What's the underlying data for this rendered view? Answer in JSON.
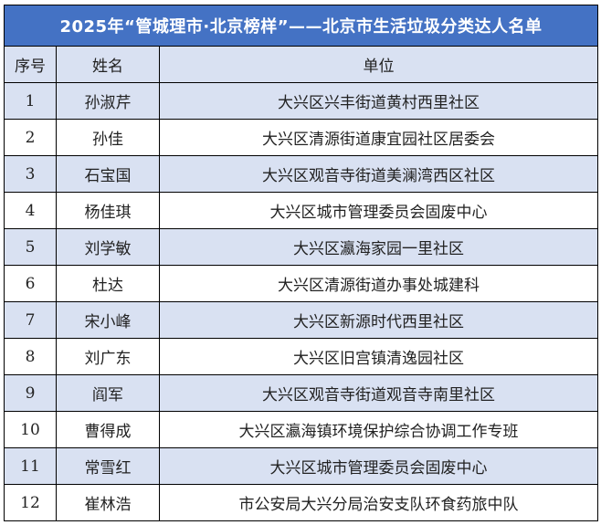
{
  "title": "2025年“管城理市·北京榜样”——北京市生活垃圾分类达人名单",
  "headers": {
    "index": "序号",
    "name": "姓名",
    "unit": "单位"
  },
  "colors": {
    "title_bg": "#4472C4",
    "stripe": "#D9E1F2"
  },
  "rows": [
    {
      "index": "1",
      "name": "孙淑芹",
      "unit": "大兴区兴丰街道黄村西里社区"
    },
    {
      "index": "2",
      "name": "孙佳",
      "unit": "大兴区清源街道康宜园社区居委会"
    },
    {
      "index": "3",
      "name": "石宝国",
      "unit": "大兴区观音寺街道美澜湾西区社区"
    },
    {
      "index": "4",
      "name": "杨佳琪",
      "unit": "大兴区城市管理委员会固废中心"
    },
    {
      "index": "5",
      "name": "刘学敏",
      "unit": "大兴区瀛海家园一里社区"
    },
    {
      "index": "6",
      "name": "杜达",
      "unit": "大兴区清源街道办事处城建科"
    },
    {
      "index": "7",
      "name": "宋小峰",
      "unit": "大兴区新源时代西里社区"
    },
    {
      "index": "8",
      "name": "刘广东",
      "unit": "大兴区旧宫镇清逸园社区"
    },
    {
      "index": "9",
      "name": "阎军",
      "unit": "大兴区观音寺街道观音寺南里社区"
    },
    {
      "index": "10",
      "name": "曹得成",
      "unit": "大兴区瀛海镇环境保护综合协调工作专班"
    },
    {
      "index": "11",
      "name": "常雪红",
      "unit": "大兴区城市管理委员会固废中心"
    },
    {
      "index": "12",
      "name": "崔林浩",
      "unit": "市公安局大兴分局治安支队环食药旅中队"
    }
  ]
}
